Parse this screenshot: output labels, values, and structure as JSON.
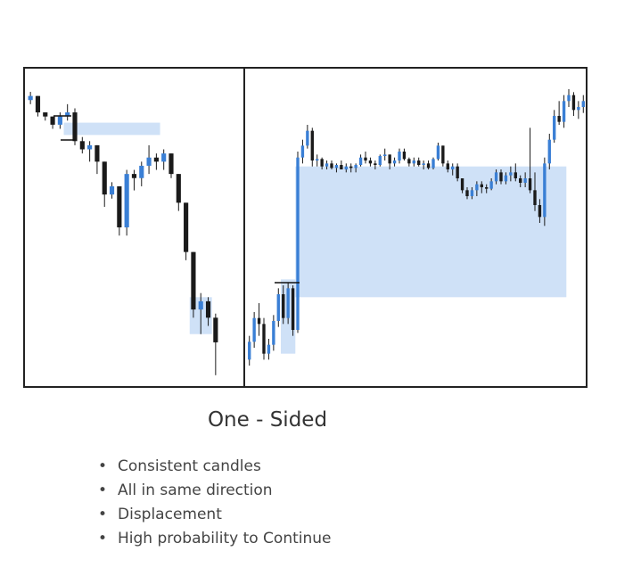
{
  "chart_data": {
    "type": "candlestick",
    "panels": [
      {
        "name": "left-panel",
        "trend": "down",
        "zones": [
          {
            "from": 5,
            "to": 18,
            "low": 88.5,
            "high": 91.5
          },
          {
            "from": 22,
            "to": 25,
            "low": 40,
            "high": 49
          }
        ],
        "candles": [
          [
            97,
            99,
            96,
            98
          ],
          [
            98,
            98,
            93,
            94
          ],
          [
            94,
            94,
            92,
            93
          ],
          [
            93,
            93,
            90,
            91
          ],
          [
            91,
            94,
            90,
            93
          ],
          [
            93,
            96,
            92,
            94
          ],
          [
            94,
            95,
            86,
            87
          ],
          [
            87,
            88,
            84,
            85
          ],
          [
            85,
            87,
            82,
            86
          ],
          [
            86,
            86,
            79,
            82
          ],
          [
            82,
            82,
            71,
            74
          ],
          [
            74,
            77,
            73,
            76
          ],
          [
            76,
            76,
            64,
            66
          ],
          [
            66,
            80,
            64,
            79
          ],
          [
            79,
            80,
            75,
            78
          ],
          [
            78,
            82,
            76,
            81
          ],
          [
            81,
            86,
            79,
            83
          ],
          [
            83,
            84,
            80,
            82
          ],
          [
            82,
            85,
            80,
            84
          ],
          [
            84,
            84,
            78,
            79
          ],
          [
            79,
            79,
            70,
            72
          ],
          [
            72,
            72,
            58,
            60
          ],
          [
            60,
            60,
            44,
            46
          ],
          [
            46,
            50,
            40,
            48
          ],
          [
            48,
            49,
            42,
            44
          ],
          [
            44,
            45,
            30,
            38
          ]
        ],
        "y_range": [
          28,
          104
        ]
      },
      {
        "name": "right-panel",
        "trend": "up",
        "zones": [
          {
            "from": 7,
            "to": 10,
            "low": 14,
            "high": 39
          },
          {
            "from": 10,
            "to": 66,
            "low": 33,
            "high": 77
          }
        ],
        "candles": [
          [
            12,
            20,
            10,
            18
          ],
          [
            18,
            28,
            16,
            26
          ],
          [
            26,
            31,
            20,
            24
          ],
          [
            24,
            26,
            12,
            14
          ],
          [
            14,
            19,
            12,
            17
          ],
          [
            17,
            27,
            15,
            25
          ],
          [
            25,
            36,
            23,
            34
          ],
          [
            34,
            37,
            24,
            26
          ],
          [
            26,
            38,
            24,
            36
          ],
          [
            36,
            37,
            20,
            22
          ],
          [
            22,
            82,
            21,
            80
          ],
          [
            80,
            86,
            78,
            84
          ],
          [
            84,
            91,
            83,
            89
          ],
          [
            89,
            90,
            77,
            79
          ],
          [
            79,
            81,
            77,
            79.5
          ],
          [
            79.5,
            80,
            76,
            77
          ],
          [
            77,
            79,
            76,
            78
          ],
          [
            78,
            79,
            76,
            76.5
          ],
          [
            76.5,
            78,
            75,
            77.5
          ],
          [
            77.5,
            79,
            76,
            76
          ],
          [
            76,
            78,
            75,
            77
          ],
          [
            77,
            78,
            75,
            76.5
          ],
          [
            76.5,
            78,
            75,
            77.5
          ],
          [
            77.5,
            81,
            77,
            80
          ],
          [
            80,
            82,
            78,
            79
          ],
          [
            79,
            80,
            77,
            78
          ],
          [
            78,
            79,
            76,
            77.5
          ],
          [
            77.5,
            81,
            77,
            80.5
          ],
          [
            80.5,
            83,
            79,
            81
          ],
          [
            81,
            81,
            76,
            78
          ],
          [
            78,
            80,
            77,
            79
          ],
          [
            79,
            83,
            78,
            82
          ],
          [
            82,
            83,
            79,
            79.5
          ],
          [
            79.5,
            80,
            77,
            78
          ],
          [
            78,
            80,
            77,
            79
          ],
          [
            79,
            80,
            77,
            77.5
          ],
          [
            77.5,
            79,
            76,
            78
          ],
          [
            78,
            79,
            76,
            76.5
          ],
          [
            76.5,
            80,
            76,
            79.5
          ],
          [
            79.5,
            85,
            79,
            84
          ],
          [
            84,
            84,
            77,
            78
          ],
          [
            78,
            79,
            75,
            76
          ],
          [
            76,
            78,
            74,
            77
          ],
          [
            77,
            78,
            72,
            73
          ],
          [
            73,
            73,
            68,
            69
          ],
          [
            69,
            70,
            66,
            67
          ],
          [
            67,
            70,
            66,
            69
          ],
          [
            69,
            72,
            67,
            71
          ],
          [
            71,
            72,
            68,
            70
          ],
          [
            70,
            71,
            68,
            69.5
          ],
          [
            69.5,
            73,
            69,
            72
          ],
          [
            72,
            76,
            71,
            75
          ],
          [
            75,
            76,
            71,
            72
          ],
          [
            72,
            75,
            71,
            74
          ],
          [
            74,
            77,
            72,
            75
          ],
          [
            75,
            78,
            72,
            73
          ],
          [
            73,
            74,
            70,
            71.5
          ],
          [
            71.5,
            75,
            70,
            73
          ],
          [
            73,
            90,
            68,
            69
          ],
          [
            69,
            75,
            62,
            64
          ],
          [
            64,
            66,
            58,
            60
          ],
          [
            60,
            80,
            57,
            78
          ],
          [
            78,
            88,
            76,
            86
          ],
          [
            86,
            96,
            85,
            94
          ],
          [
            94,
            99,
            91,
            92
          ],
          [
            92,
            101,
            90,
            99
          ],
          [
            99,
            103,
            97,
            101
          ],
          [
            101,
            102,
            94,
            96
          ],
          [
            96,
            99,
            93,
            97
          ],
          [
            97,
            101,
            95,
            99
          ]
        ],
        "y_range": [
          4,
          109
        ]
      }
    ],
    "colors": {
      "up": "#3a7fd5",
      "down": "#1a1a1a",
      "zone": "#cfe1f7",
      "frame": "#222222"
    },
    "grid": false
  },
  "caption": "One - Sided",
  "bullets": [
    "Consistent candles",
    "All in same direction",
    "Displacement",
    "High probability to Continue"
  ]
}
